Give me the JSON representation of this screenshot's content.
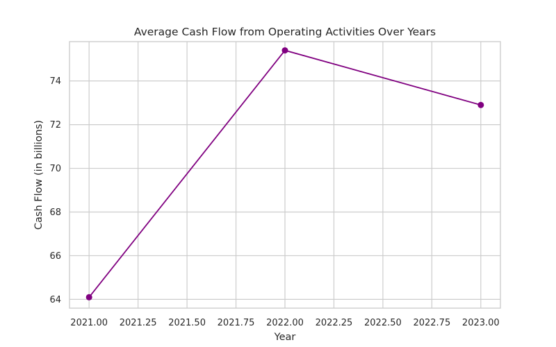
{
  "chart_data": {
    "type": "line",
    "title": "Average Cash Flow from Operating Activities Over Years",
    "xlabel": "Year",
    "ylabel": "Cash Flow (in billions)",
    "xlim": [
      2020.9,
      2023.1
    ],
    "ylim": [
      63.6,
      75.8
    ],
    "x_ticks": [
      2021.0,
      2021.25,
      2021.5,
      2021.75,
      2022.0,
      2022.25,
      2022.5,
      2022.75,
      2023.0
    ],
    "x_tick_labels": [
      "2021.00",
      "2021.25",
      "2021.50",
      "2021.75",
      "2022.00",
      "2022.25",
      "2022.50",
      "2022.75",
      "2023.00"
    ],
    "y_ticks": [
      64,
      66,
      68,
      70,
      72,
      74
    ],
    "y_tick_labels": [
      "64",
      "66",
      "68",
      "70",
      "72",
      "74"
    ],
    "grid": true,
    "legend": "none",
    "series": [
      {
        "x": [
          2021.0,
          2022.0,
          2023.0
        ],
        "values": [
          64.1,
          75.4,
          72.9
        ],
        "color": "#800080",
        "marker": "circle"
      }
    ]
  }
}
